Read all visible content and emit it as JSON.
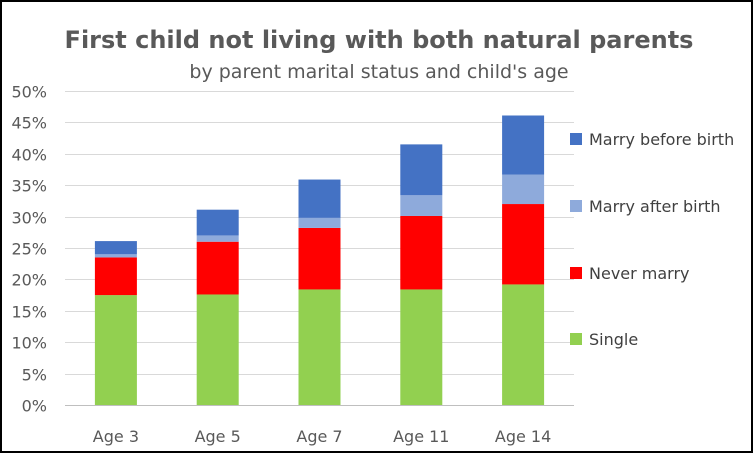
{
  "chart_data": {
    "type": "bar",
    "stacked": true,
    "title": "First child not living with both natural parents",
    "subtitle": "by parent marital status and child's age",
    "xlabel": "",
    "ylabel": "",
    "ylim": [
      0,
      50
    ],
    "yticks": [
      "0%",
      "5%",
      "10%",
      "15%",
      "20%",
      "25%",
      "30%",
      "35%",
      "40%",
      "45%",
      "50%"
    ],
    "grid": true,
    "legend_position": "right",
    "categories": [
      "Age 3",
      "Age 5",
      "Age 7",
      "Age 11",
      "Age 14"
    ],
    "series": [
      {
        "name": "Single",
        "color": "#92d050",
        "values": [
          17.5,
          17.6,
          18.4,
          18.4,
          19.2
        ]
      },
      {
        "name": "Never marry",
        "color": "#ff0000",
        "values": [
          6.0,
          8.4,
          9.8,
          11.7,
          12.8
        ]
      },
      {
        "name": "Marry after birth",
        "color": "#8eaadb",
        "values": [
          0.5,
          1.0,
          1.6,
          3.3,
          4.7
        ]
      },
      {
        "name": "Marry before birth",
        "color": "#4472c4",
        "values": [
          2.1,
          4.1,
          6.1,
          8.1,
          9.4
        ]
      }
    ]
  }
}
